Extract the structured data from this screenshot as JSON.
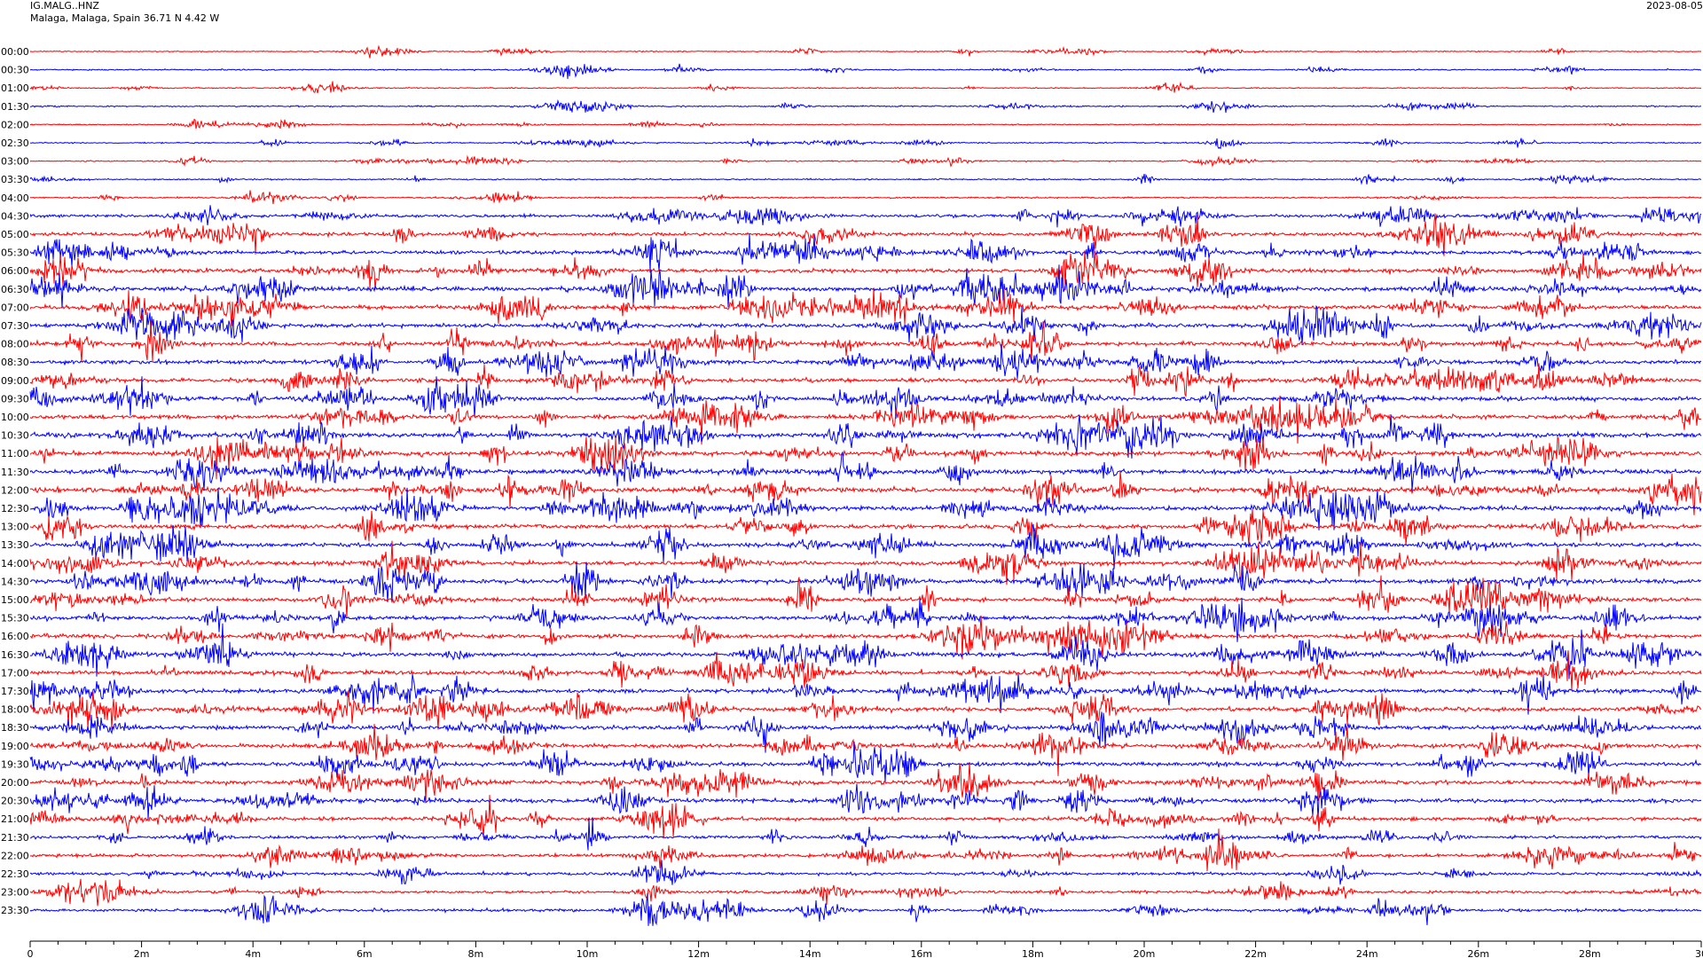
{
  "header": {
    "station": "IG.MALG..HNZ",
    "location": "Malaga, Malaga, Spain  36.71 N 4.42 W",
    "date": "2023-08-05"
  },
  "colors": {
    "trace_a": "#ff0000",
    "trace_b": "#0000ff",
    "axis": "#000000",
    "background": "#ffffff"
  },
  "chart_data": {
    "type": "line",
    "subtype": "helicorder",
    "row_labels": [
      "00:00",
      "00:30",
      "01:00",
      "01:30",
      "02:00",
      "02:30",
      "03:00",
      "03:30",
      "04:00",
      "04:30",
      "05:00",
      "05:30",
      "06:00",
      "06:30",
      "07:00",
      "07:30",
      "08:00",
      "08:30",
      "09:00",
      "09:30",
      "10:00",
      "10:30",
      "11:00",
      "11:30",
      "12:00",
      "12:30",
      "13:00",
      "13:30",
      "14:00",
      "14:30",
      "15:00",
      "15:30",
      "16:00",
      "16:30",
      "17:00",
      "17:30",
      "18:00",
      "18:30",
      "19:00",
      "19:30",
      "20:00",
      "20:30",
      "21:00",
      "21:30",
      "22:00",
      "22:30",
      "23:00",
      "23:30"
    ],
    "row_colors": [
      "red",
      "blue"
    ],
    "x_ticks": [
      "0",
      "2m",
      "4m",
      "6m",
      "8m",
      "10m",
      "12m",
      "14m",
      "16m",
      "18m",
      "20m",
      "22m",
      "24m",
      "26m",
      "28m",
      "30"
    ],
    "x_range_minutes": [
      0,
      30
    ],
    "minor_tick_step_minutes": 0.5,
    "row_noise_level": [
      0.9,
      1.0,
      0.9,
      1.2,
      1.0,
      1.0,
      1.0,
      1.1,
      1.2,
      2.3,
      2.8,
      3.0,
      3.2,
      3.6,
      3.5,
      3.3,
      3.3,
      3.2,
      3.2,
      3.4,
      3.3,
      3.6,
      3.5,
      3.7,
      3.7,
      3.8,
      3.5,
      3.4,
      3.4,
      3.6,
      3.4,
      3.3,
      3.4,
      3.4,
      3.3,
      3.3,
      3.3,
      3.2,
      3.3,
      3.3,
      3.3,
      3.4,
      3.0,
      2.5,
      2.6,
      2.4,
      2.2,
      2.2
    ]
  }
}
